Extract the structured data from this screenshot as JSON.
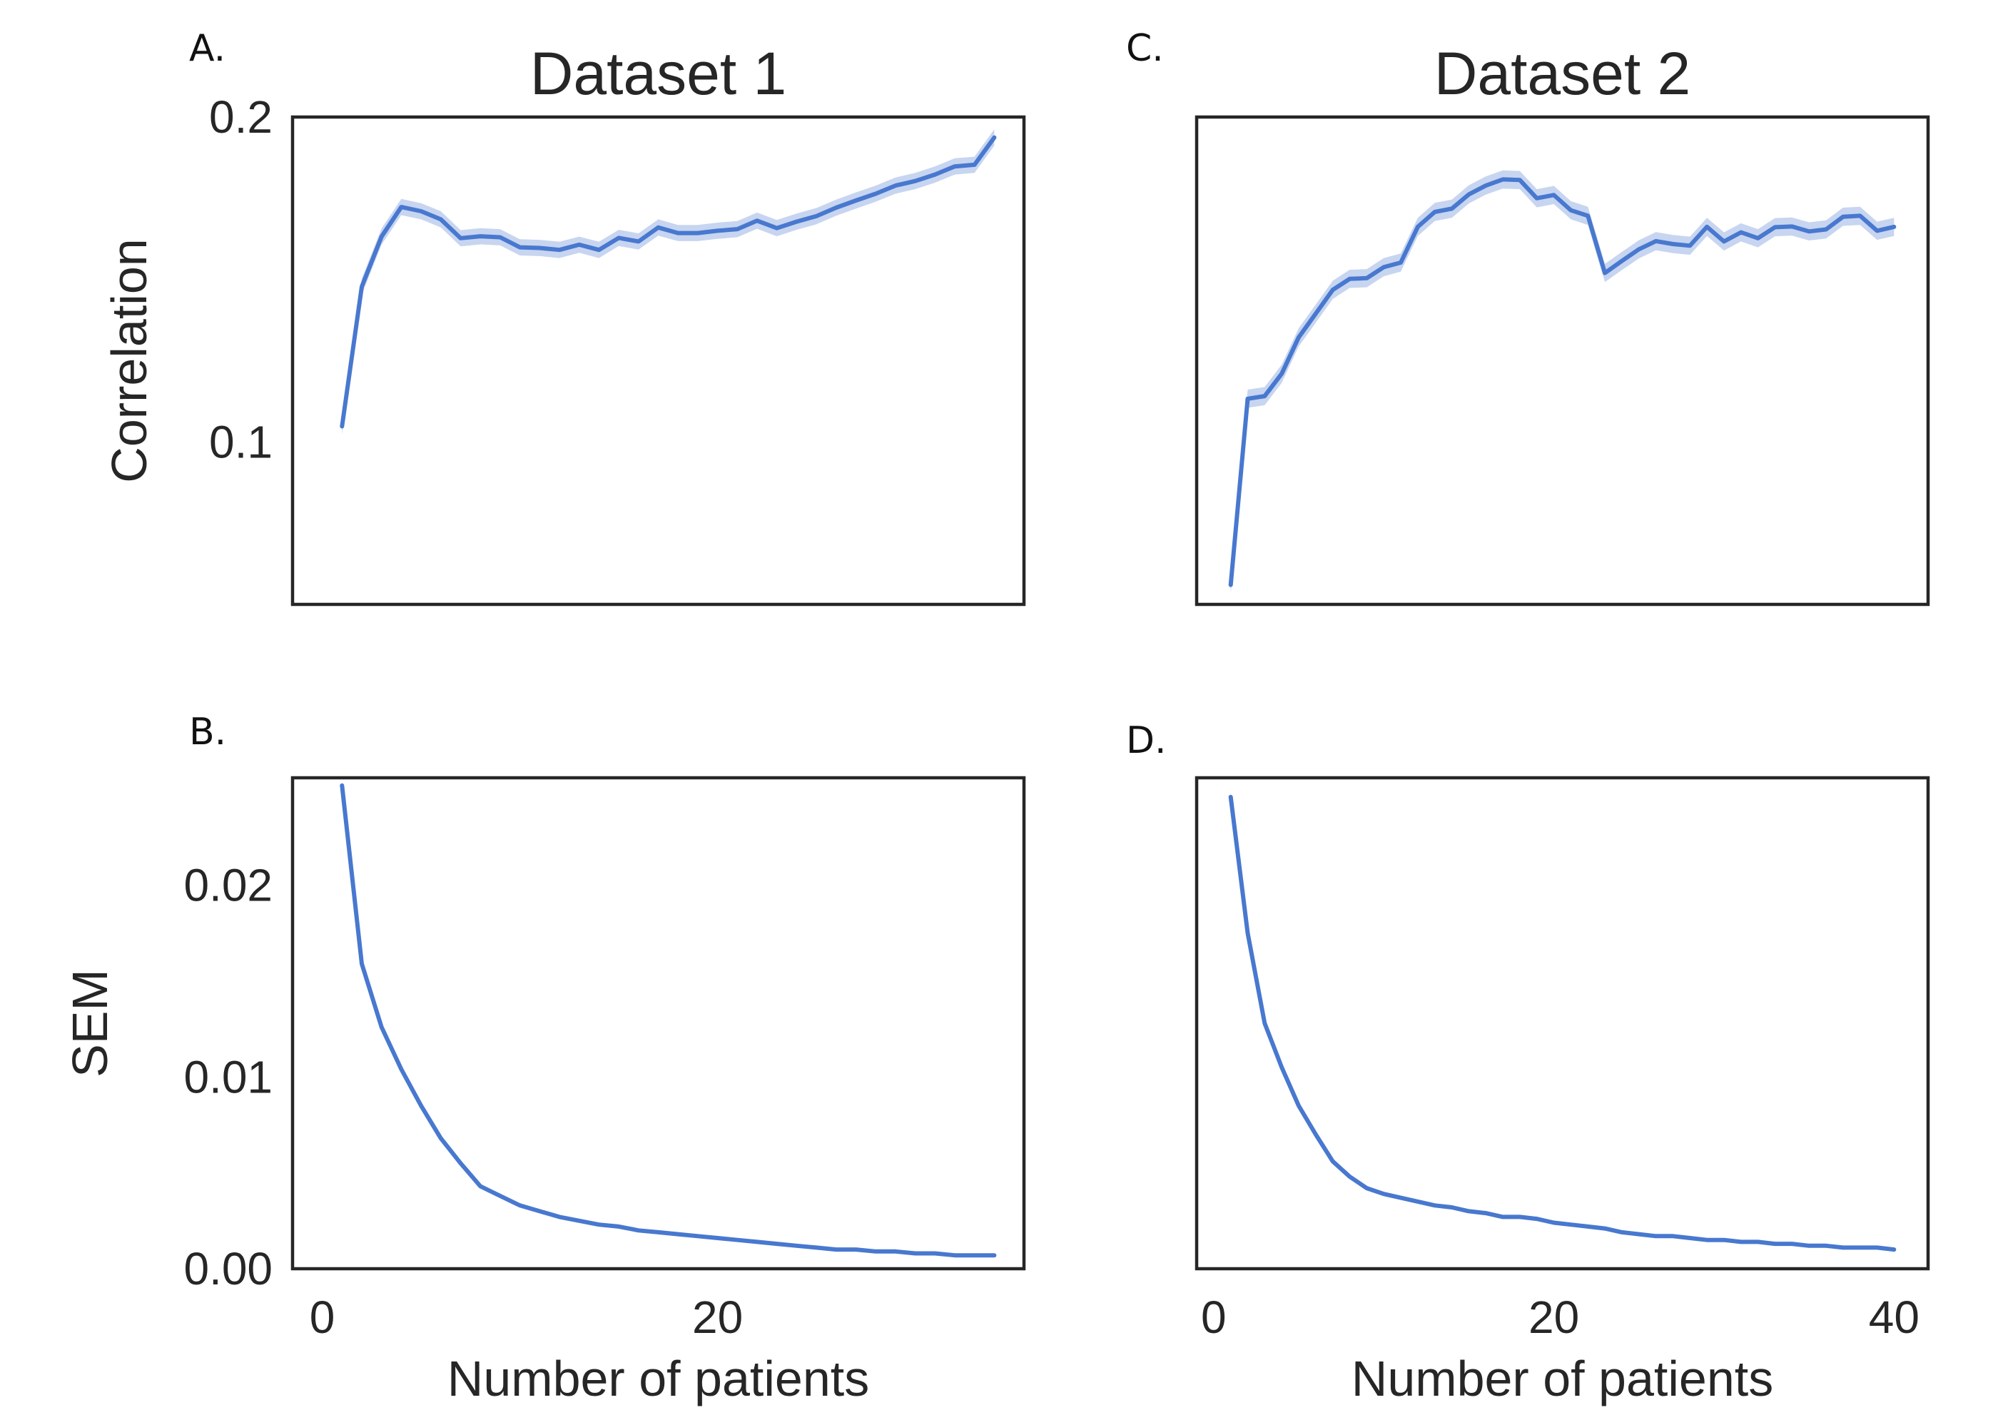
{
  "figure": {
    "x_axis_label": "Number of patients",
    "colors": {
      "line": "#4878cf",
      "band": "#c7d5f0",
      "axes": "#262626"
    }
  },
  "chart_data": [
    {
      "id": "A",
      "letter": "A.",
      "type": "line",
      "title": "Dataset 1",
      "xlabel": "",
      "ylabel": "Correlation",
      "xlim": [
        -1.5,
        35.5
      ],
      "ylim": [
        0.05,
        0.2
      ],
      "xticks": [],
      "yticks": [
        0.1,
        0.2
      ],
      "ytick_labels": [
        "0.1",
        "0.2"
      ],
      "ci_halfwidth": 0.0025,
      "x": [
        1,
        2,
        3,
        4,
        5,
        6,
        7,
        8,
        9,
        10,
        11,
        12,
        13,
        14,
        15,
        16,
        17,
        18,
        19,
        20,
        21,
        22,
        23,
        24,
        25,
        26,
        27,
        28,
        29,
        30,
        31,
        32,
        33,
        34
      ],
      "y": [
        0.1048,
        0.1478,
        0.1632,
        0.1723,
        0.171,
        0.1685,
        0.1627,
        0.1633,
        0.163,
        0.1599,
        0.1597,
        0.1591,
        0.1607,
        0.1591,
        0.1628,
        0.1617,
        0.166,
        0.1643,
        0.1643,
        0.165,
        0.1655,
        0.1681,
        0.1658,
        0.1678,
        0.1695,
        0.1721,
        0.1743,
        0.1764,
        0.1789,
        0.1803,
        0.1823,
        0.1848,
        0.1853,
        0.1937
      ]
    },
    {
      "id": "B",
      "letter": "B.",
      "type": "line",
      "title": "",
      "xlabel": "Number of patients",
      "ylabel": "SEM",
      "xlim": [
        -1.5,
        35.5
      ],
      "ylim": [
        0,
        0.0256
      ],
      "xticks": [
        0,
        20
      ],
      "xtick_labels": [
        "0",
        "20"
      ],
      "yticks": [
        0,
        0.01,
        0.02
      ],
      "ytick_labels": [
        "0.00",
        "0.01",
        "0.02"
      ],
      "ci_halfwidth": 0,
      "x": [
        1,
        2,
        3,
        4,
        5,
        6,
        7,
        8,
        9,
        10,
        11,
        12,
        13,
        14,
        15,
        16,
        17,
        18,
        19,
        20,
        21,
        22,
        23,
        24,
        25,
        26,
        27,
        28,
        29,
        30,
        31,
        32,
        33,
        34
      ],
      "y": [
        0.0252,
        0.0159,
        0.0126,
        0.0104,
        0.0085,
        0.0068,
        0.0055,
        0.0043,
        0.0038,
        0.0033,
        0.003,
        0.0027,
        0.0025,
        0.0023,
        0.0022,
        0.002,
        0.0019,
        0.0018,
        0.0017,
        0.0016,
        0.0015,
        0.0014,
        0.0013,
        0.0012,
        0.0011,
        0.001,
        0.001,
        0.0009,
        0.0009,
        0.0008,
        0.0008,
        0.0007,
        0.0007,
        0.0007
      ]
    },
    {
      "id": "C",
      "letter": "C.",
      "type": "line",
      "title": "Dataset 2",
      "xlabel": "",
      "ylabel": "",
      "xlim": [
        -1,
        42
      ],
      "ylim": [
        0.05,
        0.2
      ],
      "xticks": [],
      "yticks": [],
      "ci_halfwidth": 0.0028,
      "x": [
        1,
        2,
        3,
        4,
        5,
        6,
        7,
        8,
        9,
        10,
        11,
        12,
        13,
        14,
        15,
        16,
        17,
        18,
        19,
        20,
        21,
        22,
        23,
        24,
        25,
        26,
        27,
        28,
        29,
        30,
        31,
        32,
        33,
        34,
        35,
        36,
        37,
        38,
        39,
        40
      ],
      "y": [
        0.056,
        0.1133,
        0.1141,
        0.121,
        0.1322,
        0.1395,
        0.1468,
        0.1502,
        0.1504,
        0.1538,
        0.1552,
        0.1662,
        0.1708,
        0.1718,
        0.1762,
        0.1789,
        0.1808,
        0.1806,
        0.175,
        0.176,
        0.1713,
        0.1696,
        0.152,
        0.1557,
        0.1593,
        0.1618,
        0.1609,
        0.1604,
        0.1662,
        0.1617,
        0.1645,
        0.1627,
        0.1661,
        0.1663,
        0.1648,
        0.1654,
        0.1693,
        0.1696,
        0.165,
        0.1662
      ]
    },
    {
      "id": "D",
      "letter": "D.",
      "type": "line",
      "title": "",
      "xlabel": "Number of patients",
      "ylabel": "",
      "xlim": [
        -1,
        42
      ],
      "ylim": [
        0,
        0.0256
      ],
      "xticks": [
        0,
        20,
        40
      ],
      "xtick_labels": [
        "0",
        "20",
        "40"
      ],
      "yticks": [],
      "ci_halfwidth": 0,
      "x": [
        1,
        2,
        3,
        4,
        5,
        6,
        7,
        8,
        9,
        10,
        11,
        12,
        13,
        14,
        15,
        16,
        17,
        18,
        19,
        20,
        21,
        22,
        23,
        24,
        25,
        26,
        27,
        28,
        29,
        30,
        31,
        32,
        33,
        34,
        35,
        36,
        37,
        38,
        39,
        40
      ],
      "y": [
        0.0246,
        0.0175,
        0.0128,
        0.0105,
        0.0085,
        0.007,
        0.0056,
        0.0048,
        0.0042,
        0.0039,
        0.0037,
        0.0035,
        0.0033,
        0.0032,
        0.003,
        0.0029,
        0.0027,
        0.0027,
        0.0026,
        0.0024,
        0.0023,
        0.0022,
        0.0021,
        0.0019,
        0.0018,
        0.0017,
        0.0017,
        0.0016,
        0.0015,
        0.0015,
        0.0014,
        0.0014,
        0.0013,
        0.0013,
        0.0012,
        0.0012,
        0.0011,
        0.0011,
        0.0011,
        0.001
      ]
    }
  ]
}
